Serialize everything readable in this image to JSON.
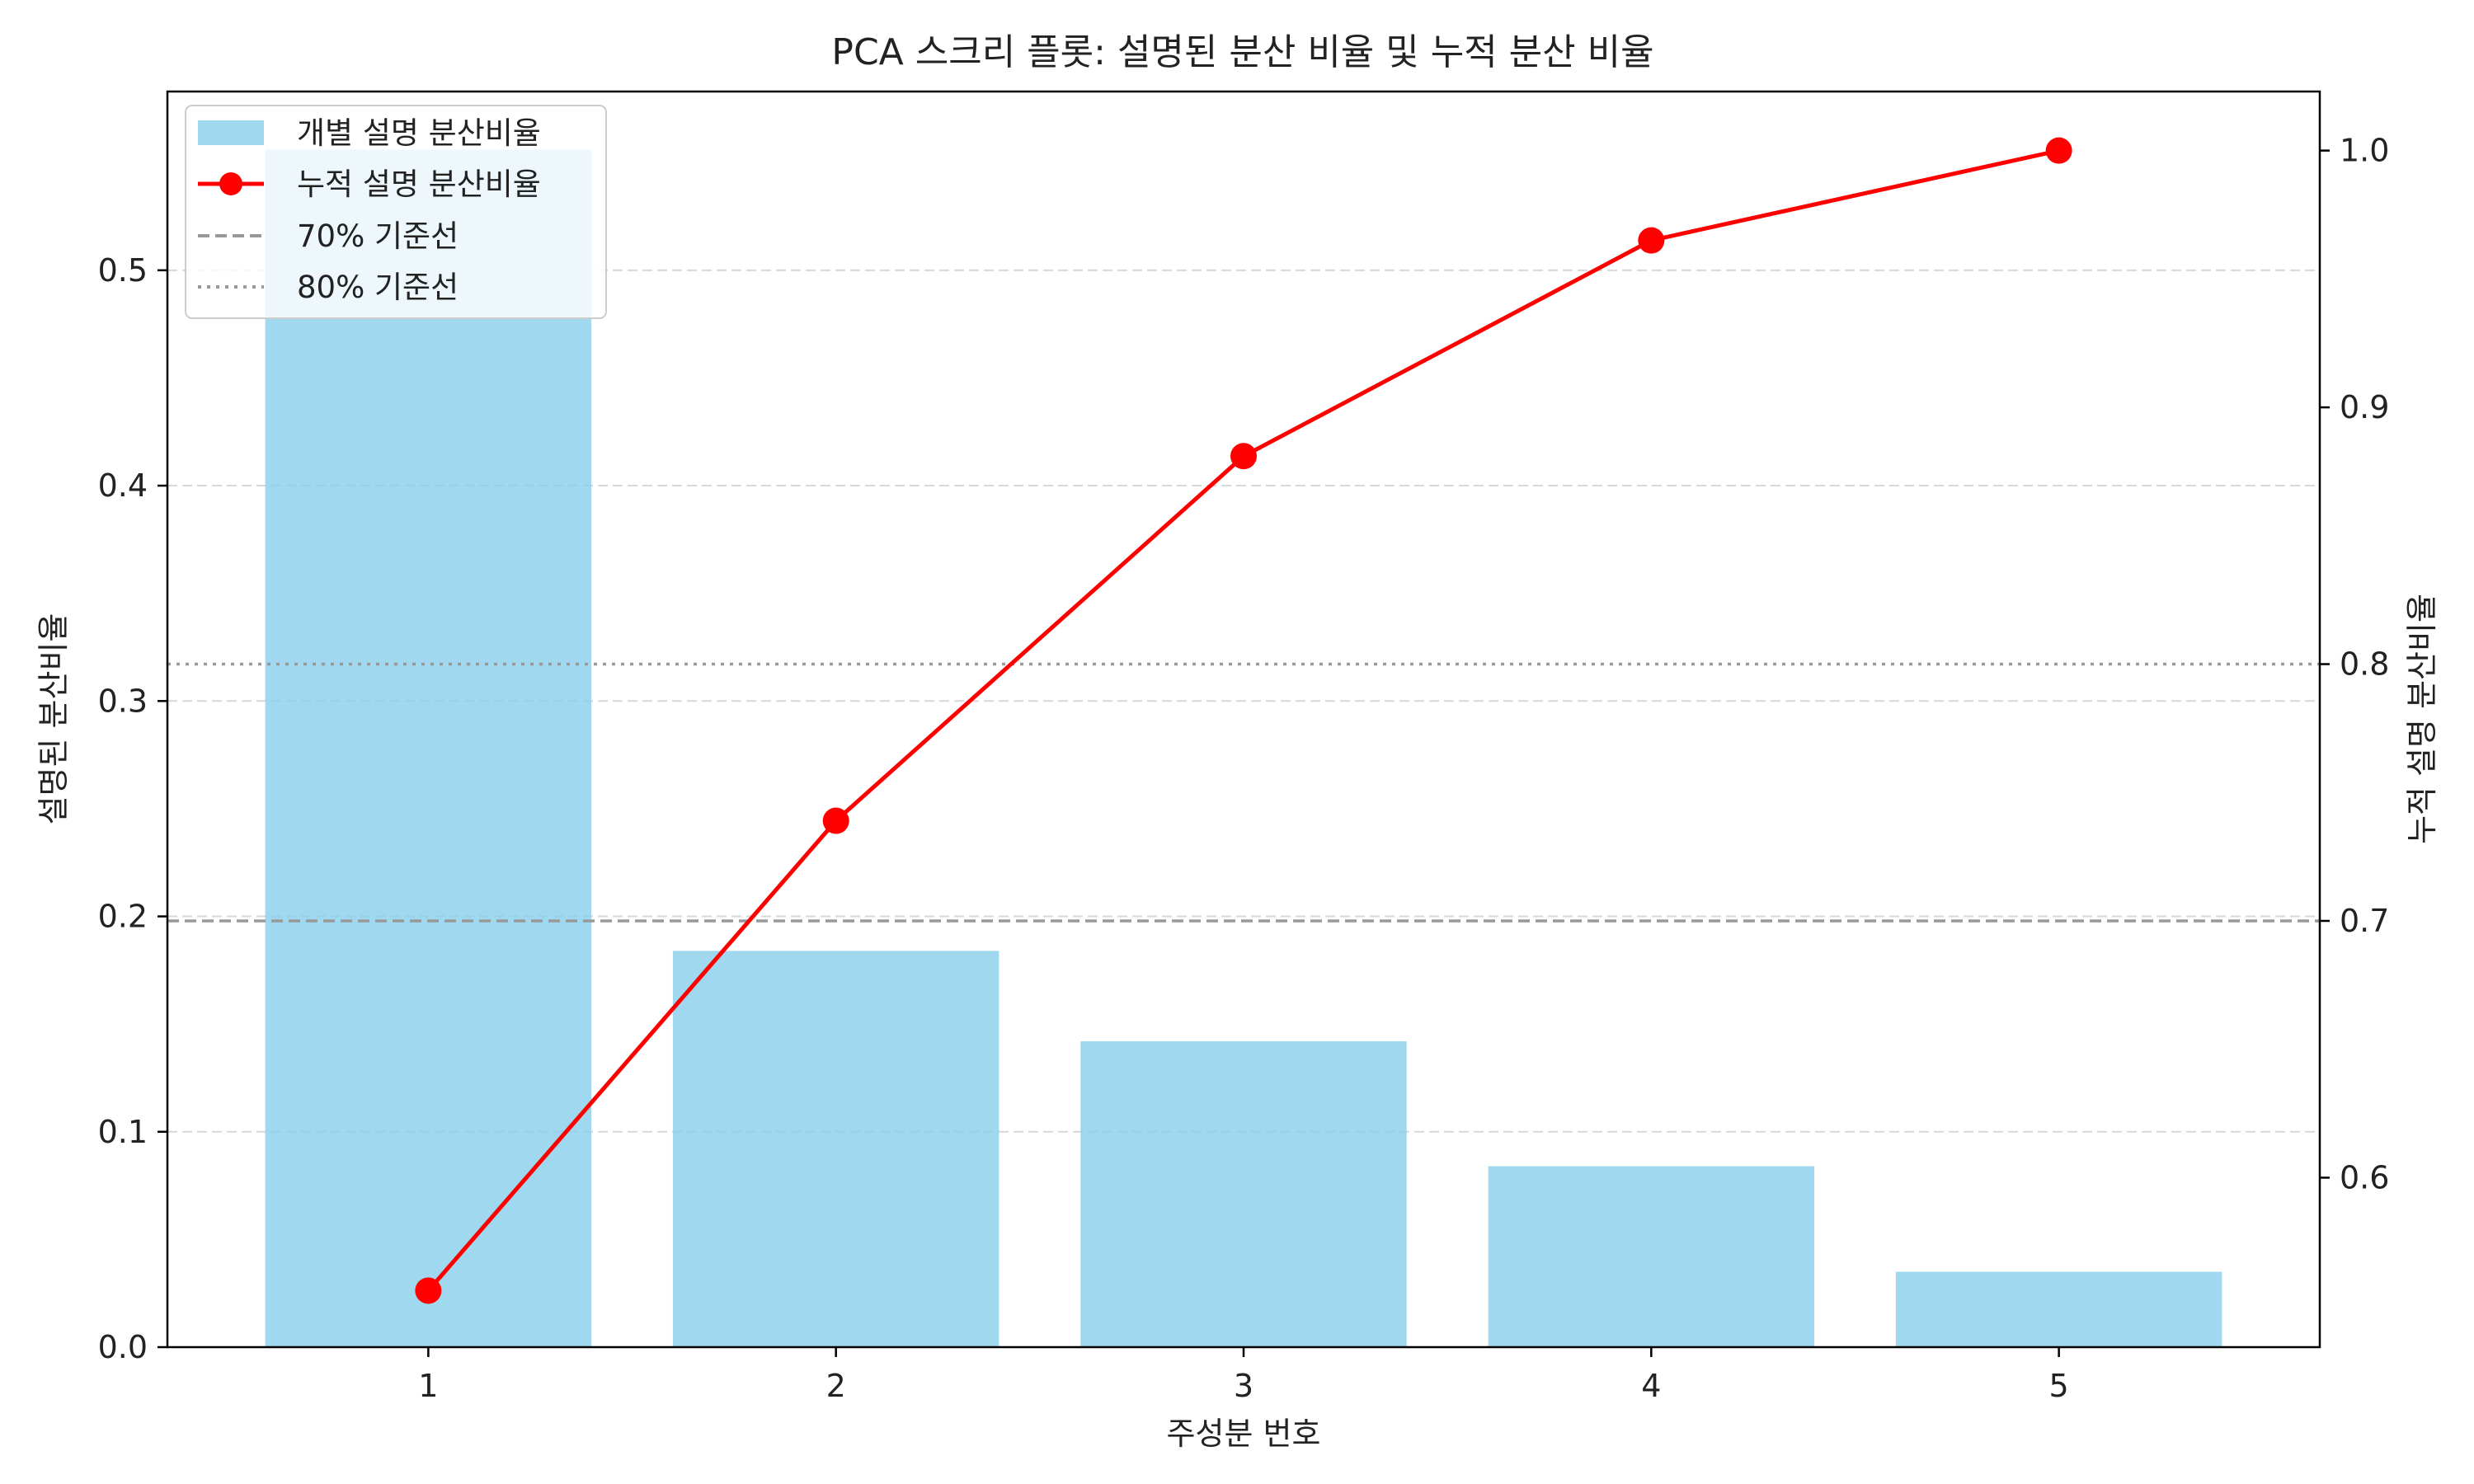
{
  "chart_data": {
    "type": "bar",
    "title": "PCA 스크리 플롯: 설명된 분산 비율 및 누적 분산 비율",
    "xlabel": "주성분 번호",
    "ylabel": "설명된 분산비율",
    "y2label": "누적 설명 분산비율",
    "categories": [
      "1",
      "2",
      "3",
      "4",
      "5"
    ],
    "bar_series": {
      "name": "개별 설명 분산비율",
      "values": [
        0.556,
        0.184,
        0.142,
        0.084,
        0.035
      ],
      "color": "#87ceeb"
    },
    "line_series": {
      "name": "누적 설명 분산비율",
      "values": [
        0.556,
        0.739,
        0.881,
        0.965,
        1.0
      ],
      "color": "#ff0000"
    },
    "reference_lines": [
      {
        "name": "70% 기준선",
        "value": 0.7,
        "style": "dashed",
        "color": "#999999"
      },
      {
        "name": "80% 기준선",
        "value": 0.8,
        "style": "dotted",
        "color": "#999999"
      }
    ],
    "ylim": [
      0,
      0.583
    ],
    "y2lim": [
      0.534,
      1.023
    ],
    "yticks": [
      "0.0",
      "0.1",
      "0.2",
      "0.3",
      "0.4",
      "0.5"
    ],
    "y2ticks": [
      "0.6",
      "0.7",
      "0.8",
      "0.9",
      "1.0"
    ],
    "grid": "y-dashed",
    "legend_position": "top-left"
  }
}
